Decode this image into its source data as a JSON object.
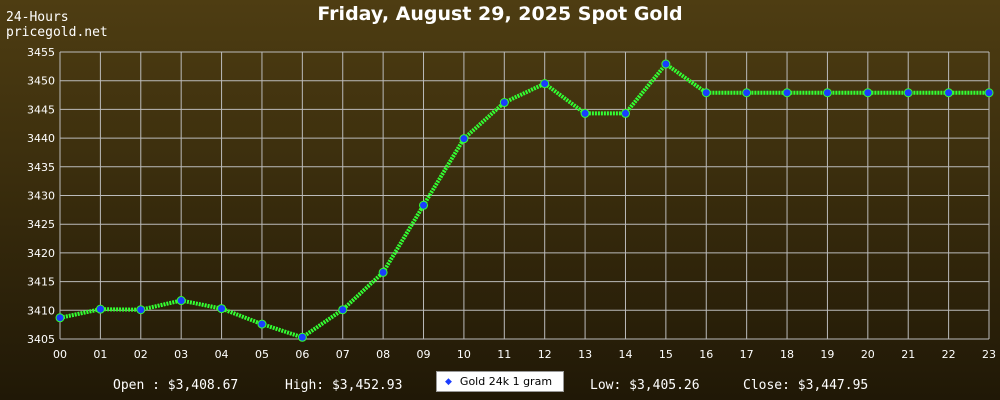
{
  "header": {
    "corner_line1": "24-Hours",
    "corner_line2": "pricegold.net",
    "title": "Friday, August 29, 2025 Spot Gold"
  },
  "colors": {
    "line": "#33ff33",
    "marker_fill": "#1a3cff",
    "marker_stroke": "#33ff33",
    "grid": "#bbbbbb"
  },
  "chart_data": {
    "type": "line",
    "title": "Friday, August 29, 2025 Spot Gold",
    "xlabel": "",
    "ylabel": "",
    "x": [
      "00",
      "01",
      "02",
      "03",
      "04",
      "05",
      "06",
      "07",
      "08",
      "09",
      "10",
      "11",
      "12",
      "13",
      "14",
      "15",
      "16",
      "17",
      "18",
      "19",
      "20",
      "21",
      "22",
      "23"
    ],
    "yticks": [
      3405,
      3410,
      3415,
      3420,
      3425,
      3430,
      3435,
      3440,
      3445,
      3450,
      3455
    ],
    "ylim": [
      3405,
      3455
    ],
    "grid": true,
    "legend_position": "bottom-center",
    "series": [
      {
        "name": "Gold 24k 1 gram",
        "values": [
          3408.7,
          3410.2,
          3410.1,
          3411.7,
          3410.3,
          3407.6,
          3405.3,
          3410.1,
          3416.6,
          3428.3,
          3439.9,
          3446.2,
          3449.5,
          3444.3,
          3444.3,
          3452.9,
          3447.9,
          3447.9,
          3447.9,
          3447.9,
          3447.9,
          3447.9,
          3447.9,
          3447.9
        ]
      }
    ]
  },
  "stats": {
    "open": "Open : $3,408.67",
    "high": "High: $3,452.93",
    "low": "Low: $3,405.26",
    "close": "Close: $3,447.95"
  },
  "legend": {
    "label": "Gold 24k 1 gram"
  }
}
